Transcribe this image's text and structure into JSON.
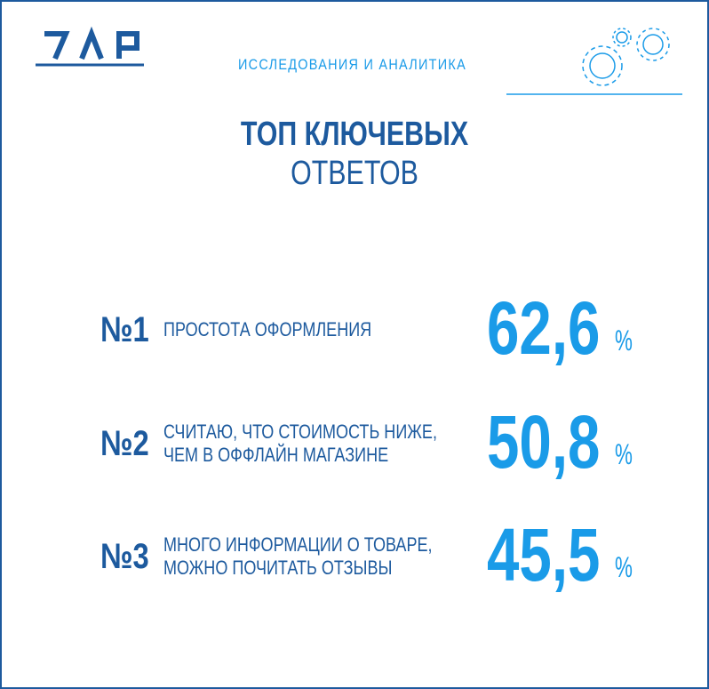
{
  "header": {
    "subtitle": "ИССЛЕДОВАНИЯ И АНАЛИТИКА"
  },
  "title": {
    "line1": "ТОП КЛЮЧЕВЫХ",
    "line2": "ОТВЕТОВ"
  },
  "items": [
    {
      "rank": "№1",
      "lines": [
        "ПРОСТОТА ОФОРМЛЕНИЯ"
      ],
      "value": "62,6",
      "unit": "%"
    },
    {
      "rank": "№2",
      "lines": [
        "СЧИТАЮ, ЧТО СТОИМОСТЬ НИЖЕ,",
        "ЧЕМ В ОФФЛАЙН МАГАЗИНЕ"
      ],
      "value": "50,8",
      "unit": "%"
    },
    {
      "rank": "№3",
      "lines": [
        "МНОГО ИНФОРМАЦИИ О ТОВАРЕ,",
        "МОЖНО ПОЧИТАТЬ ОТЗЫВЫ"
      ],
      "value": "45,5",
      "unit": "%"
    }
  ]
}
